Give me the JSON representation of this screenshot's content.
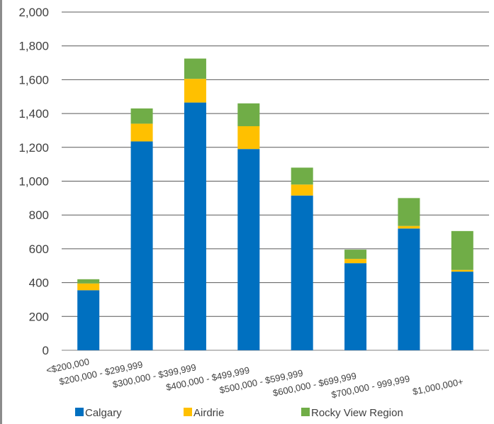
{
  "chart_data": {
    "type": "bar",
    "stacked": true,
    "categories": [
      "<$200,000",
      "$200,000 - $299,999",
      "$300,000 - $399,999",
      "$400,000 - $499,999",
      "$500,000 - $599,999",
      "$600,000 - $699,999",
      "$700,000 - 999,999",
      "$1,000,000+"
    ],
    "series": [
      {
        "name": "Calgary",
        "color": "#0070c0",
        "values": [
          355,
          1235,
          1465,
          1190,
          915,
          515,
          720,
          465
        ]
      },
      {
        "name": "Airdrie",
        "color": "#ffc000",
        "values": [
          40,
          105,
          140,
          135,
          65,
          25,
          15,
          10
        ]
      },
      {
        "name": "Rocky View Region",
        "color": "#70ad47",
        "values": [
          25,
          90,
          120,
          135,
          100,
          55,
          165,
          230
        ]
      }
    ],
    "y_ticks": [
      "0",
      "200",
      "400",
      "600",
      "800",
      "1,000",
      "1,200",
      "1,400",
      "1,600",
      "1,800",
      "2,000"
    ],
    "ylim": [
      0,
      2000
    ],
    "grid": true,
    "legend_position": "bottom"
  }
}
